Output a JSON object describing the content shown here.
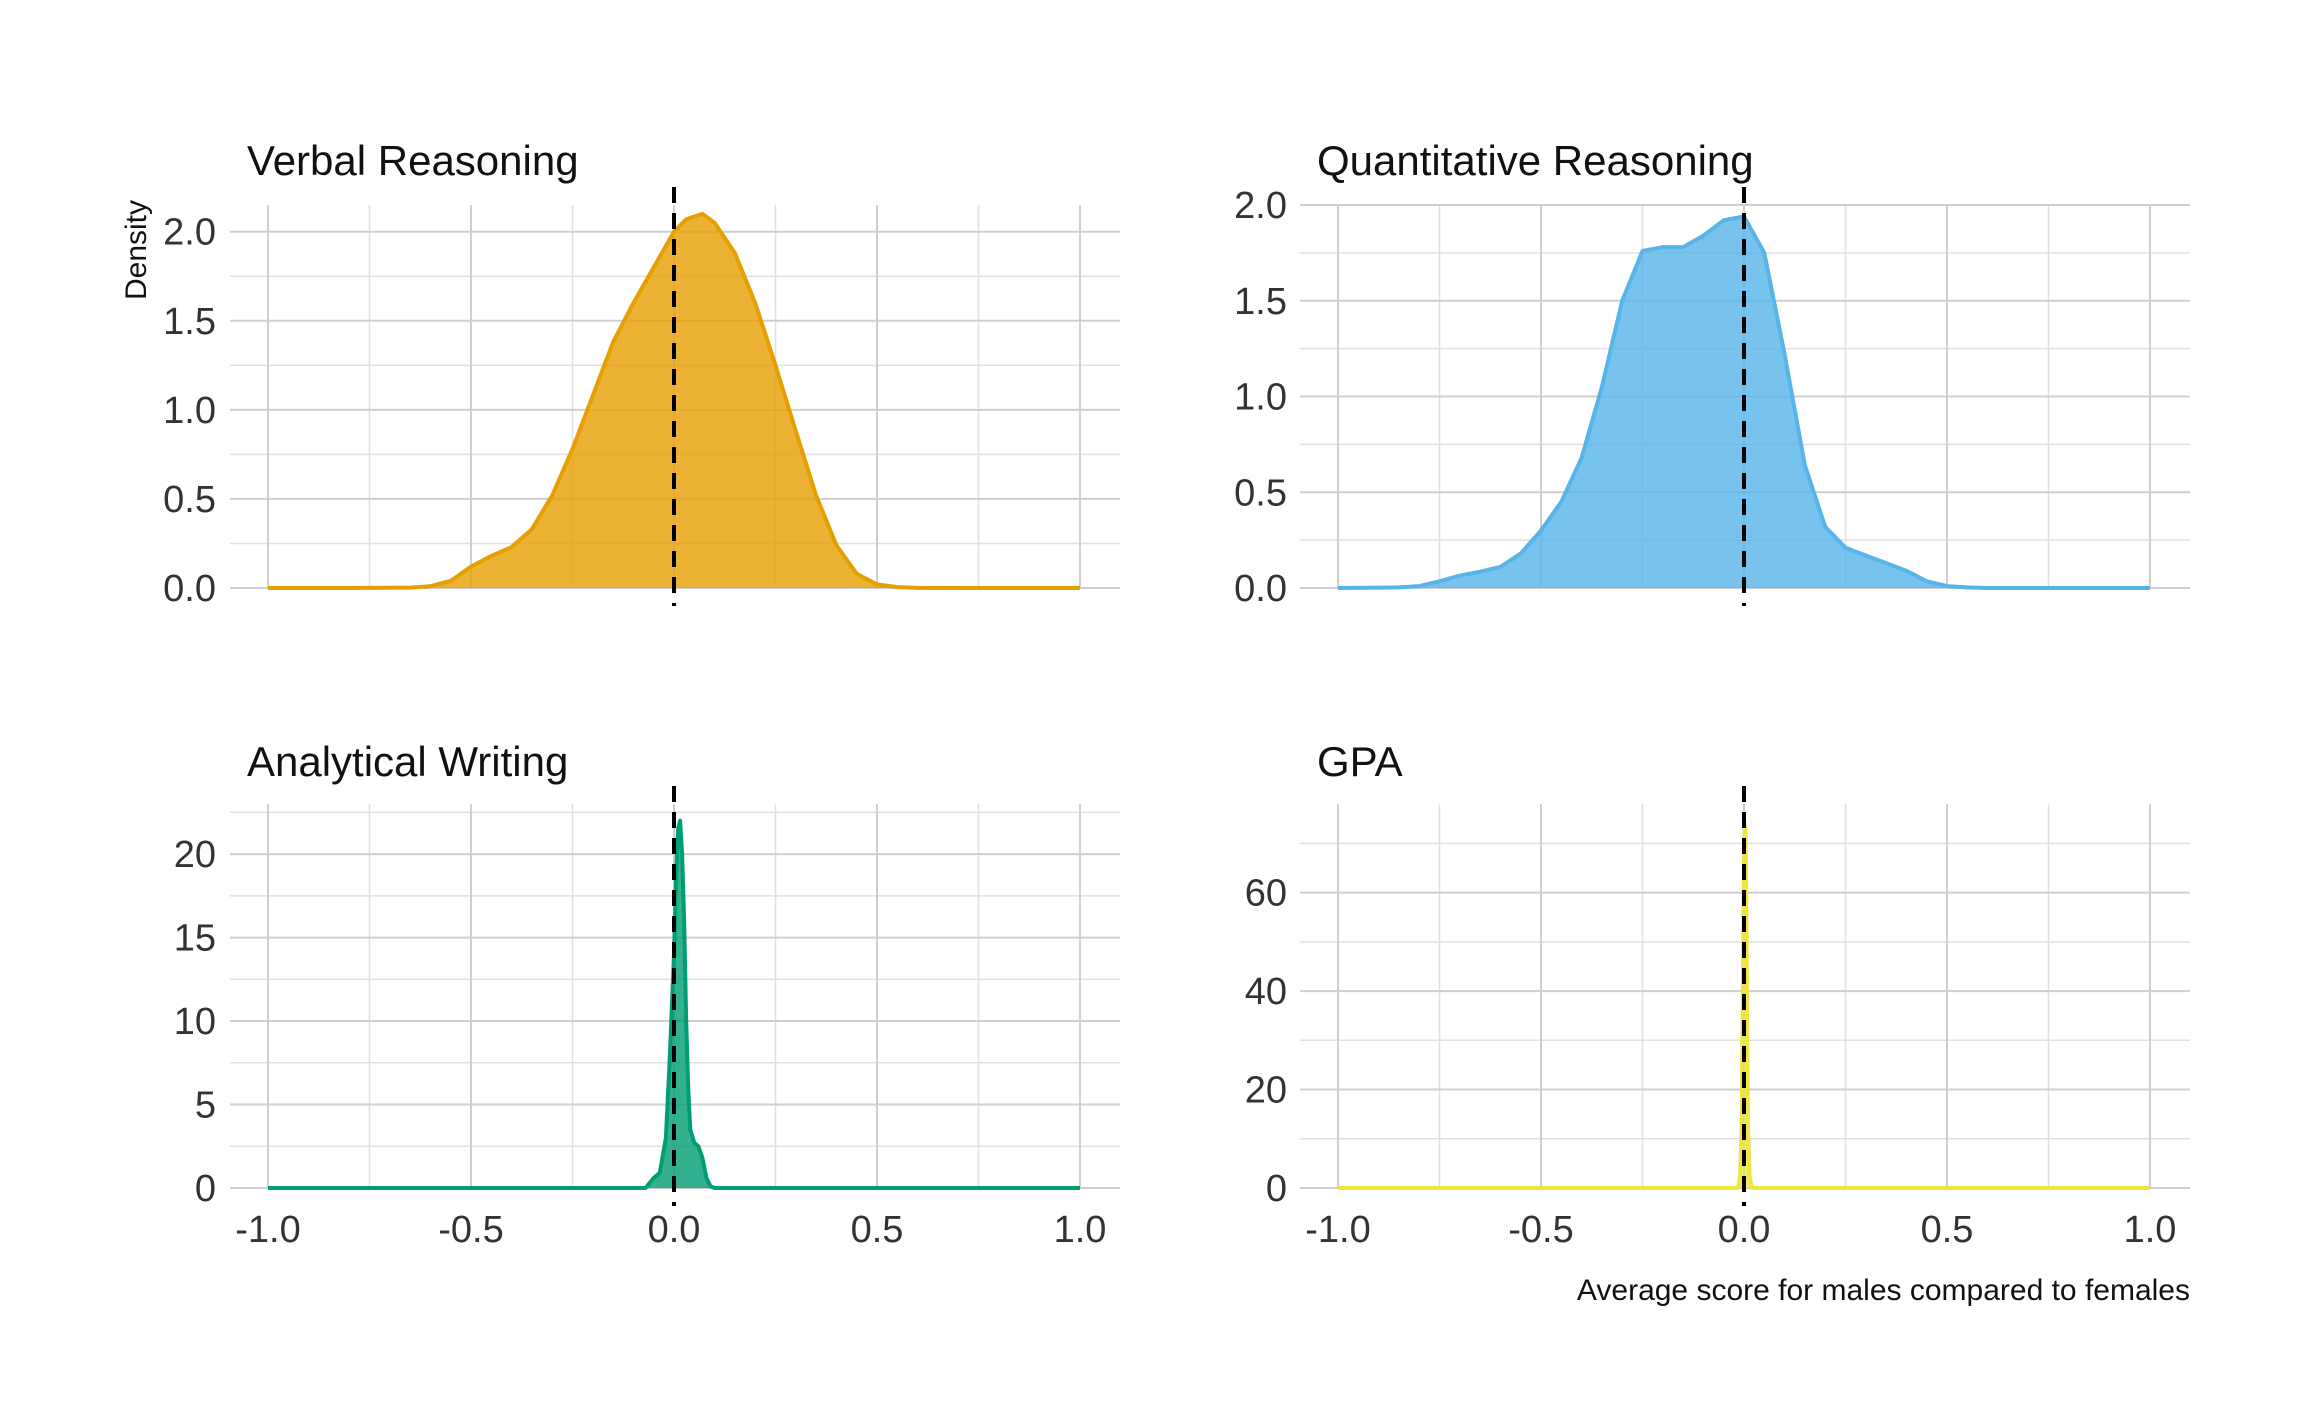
{
  "chart_data": {
    "type": "area",
    "ylabel": "Density",
    "xlabel": "Average score for males compared to females",
    "grid": true,
    "reference_line": {
      "x": 0,
      "style": "dashed",
      "color": "#000000"
    },
    "panels": [
      {
        "title": "Verbal Reasoning",
        "color": "#E69F00",
        "xlim": [
          -1.0,
          1.0
        ],
        "ylim": [
          0,
          2.15
        ],
        "yticks": [
          0.0,
          0.5,
          1.0,
          1.5,
          2.0
        ],
        "yticklabels": [
          "0.0",
          "0.5",
          "1.0",
          "1.5",
          "2.0"
        ],
        "xticks": [
          -1.0,
          -0.5,
          0.0,
          0.5,
          1.0
        ],
        "xticklabels": [],
        "density": {
          "x": [
            -1.0,
            -0.8,
            -0.65,
            -0.6,
            -0.55,
            -0.5,
            -0.45,
            -0.4,
            -0.35,
            -0.3,
            -0.25,
            -0.2,
            -0.15,
            -0.1,
            -0.05,
            0.0,
            0.03,
            0.07,
            0.1,
            0.15,
            0.2,
            0.25,
            0.3,
            0.35,
            0.4,
            0.45,
            0.5,
            0.55,
            0.6,
            0.8,
            1.0
          ],
          "y": [
            0.0,
            0.0,
            0.002,
            0.01,
            0.04,
            0.12,
            0.18,
            0.23,
            0.33,
            0.52,
            0.78,
            1.08,
            1.38,
            1.6,
            1.8,
            2.0,
            2.07,
            2.1,
            2.05,
            1.88,
            1.6,
            1.25,
            0.88,
            0.52,
            0.24,
            0.08,
            0.02,
            0.005,
            0.001,
            0.0,
            0.0
          ]
        }
      },
      {
        "title": "Quantitative Reasoning",
        "color": "#56B4E9",
        "xlim": [
          -1.0,
          1.0
        ],
        "ylim": [
          0,
          2.0
        ],
        "yticks": [
          0.0,
          0.5,
          1.0,
          1.5,
          2.0
        ],
        "yticklabels": [
          "0.0",
          "0.5",
          "1.0",
          "1.5",
          "2.0"
        ],
        "xticks": [
          -1.0,
          -0.5,
          0.0,
          0.5,
          1.0
        ],
        "xticklabels": [],
        "density": {
          "x": [
            -1.0,
            -0.85,
            -0.8,
            -0.75,
            -0.7,
            -0.65,
            -0.6,
            -0.55,
            -0.5,
            -0.45,
            -0.4,
            -0.35,
            -0.3,
            -0.25,
            -0.2,
            -0.15,
            -0.1,
            -0.05,
            0.0,
            0.05,
            0.1,
            0.15,
            0.2,
            0.25,
            0.3,
            0.35,
            0.4,
            0.45,
            0.5,
            0.55,
            0.6,
            0.8,
            1.0
          ],
          "y": [
            0.0,
            0.003,
            0.01,
            0.035,
            0.065,
            0.085,
            0.11,
            0.18,
            0.3,
            0.45,
            0.68,
            1.05,
            1.5,
            1.76,
            1.78,
            1.78,
            1.84,
            1.92,
            1.94,
            1.75,
            1.22,
            0.64,
            0.32,
            0.21,
            0.17,
            0.13,
            0.09,
            0.035,
            0.01,
            0.003,
            0.0,
            0.0,
            0.0
          ]
        }
      },
      {
        "title": "Analytical Writing",
        "color": "#009E73",
        "xlim": [
          -1.0,
          1.0
        ],
        "ylim": [
          0,
          23
        ],
        "yticks": [
          0,
          5,
          10,
          15,
          20
        ],
        "yticklabels": [
          "0",
          "5",
          "10",
          "15",
          "20"
        ],
        "xticks": [
          -1.0,
          -0.5,
          0.0,
          0.5,
          1.0
        ],
        "xticklabels": [
          "-1.0",
          "-0.5",
          "0.0",
          "0.5",
          "1.0"
        ],
        "density": {
          "x": [
            -1.0,
            -0.07,
            -0.05,
            -0.035,
            -0.02,
            -0.01,
            0.0,
            0.005,
            0.01,
            0.015,
            0.02,
            0.025,
            0.03,
            0.035,
            0.04,
            0.05,
            0.06,
            0.07,
            0.08,
            0.09,
            0.1,
            1.0
          ],
          "y": [
            0.0,
            0.0,
            0.6,
            0.9,
            3.0,
            8.0,
            14.0,
            18.5,
            21.5,
            22.0,
            20.0,
            16.0,
            10.0,
            6.0,
            3.5,
            2.7,
            2.5,
            1.8,
            0.6,
            0.1,
            0.0,
            0.0
          ]
        }
      },
      {
        "title": "GPA",
        "color": "#F0E442",
        "xlim": [
          -1.0,
          1.0
        ],
        "ylim": [
          0,
          78
        ],
        "yticks": [
          0,
          20,
          40,
          60
        ],
        "yticklabels": [
          "0",
          "20",
          "40",
          "60"
        ],
        "xticks": [
          -1.0,
          -0.5,
          0.0,
          0.5,
          1.0
        ],
        "xticklabels": [
          "-1.0",
          "-0.5",
          "0.0",
          "0.5",
          "1.0"
        ],
        "density": {
          "x": [
            -1.0,
            -0.015,
            -0.01,
            -0.006,
            -0.003,
            0.0,
            0.002,
            0.004,
            0.006,
            0.008,
            0.01,
            0.014,
            0.02,
            1.0
          ],
          "y": [
            0.0,
            0.0,
            2.0,
            12.0,
            38.0,
            66.0,
            74.0,
            72.0,
            56.0,
            30.0,
            12.0,
            2.0,
            0.0,
            0.0
          ]
        }
      }
    ]
  }
}
